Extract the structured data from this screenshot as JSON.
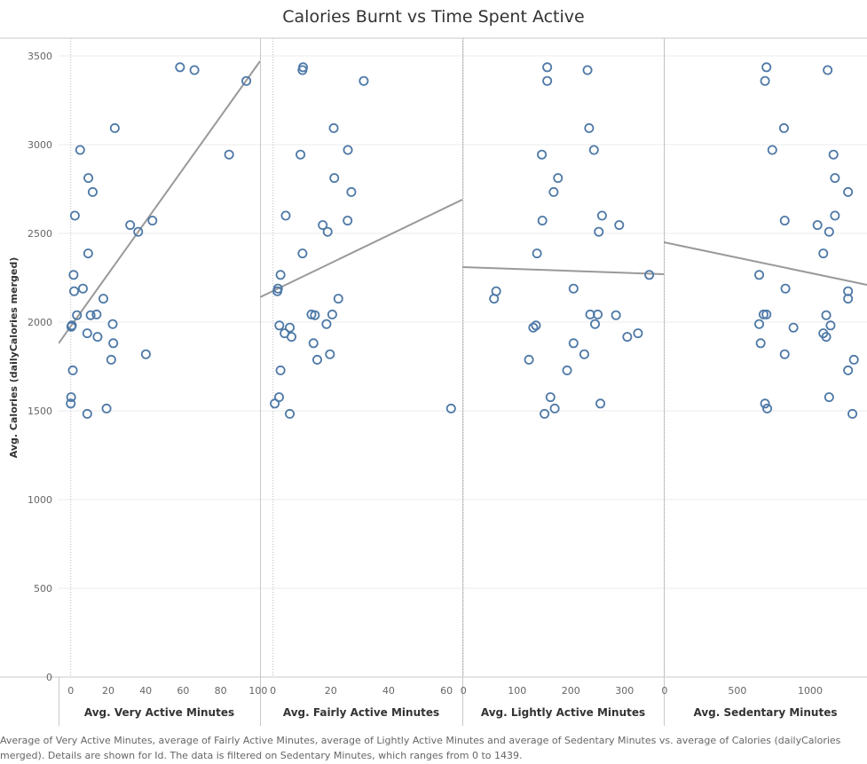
{
  "title": "Calories Burnt vs Time Spent Active",
  "caption": "Average of Very Active Minutes, average of Fairly Active Minutes, average of Lightly Active Minutes and average of Sedentary Minutes vs. average of Calories (dailyCalories merged).  Details are shown for Id. The data is filtered on Sedentary Minutes, which ranges from 0 to 1439.",
  "colors": {
    "point": "#4e79a7",
    "trend": "#999999",
    "grid": "#ebebeb",
    "divider": "#c8c8c8"
  },
  "chart_data": {
    "type": "scatter",
    "ylabel": "Avg. Calories (dailyCalories merged)",
    "ylim": [
      0,
      3600
    ],
    "yticks": [
      0,
      500,
      1000,
      1500,
      2000,
      2500,
      3000,
      3500
    ],
    "grid": "horizontal",
    "panels": [
      {
        "xlabel": "Avg. Very Active Minutes",
        "xlim": [
          -6.5,
          101
        ],
        "xticks": [
          0,
          20,
          40,
          60,
          80,
          100
        ],
        "trend": [
          [
            -6.5,
            1880
          ],
          [
            101,
            3470
          ]
        ],
        "x": [
          93.7,
          58.3,
          66,
          23.5,
          84.5,
          5,
          9.4,
          11.7,
          2.2,
          36,
          31.7,
          43.6,
          9.3,
          1.5,
          6.5,
          1.8,
          17.4,
          3.3,
          10.6,
          13.8,
          22.4,
          0.6,
          0.3,
          8.8,
          14.3,
          22.7,
          40.1,
          21.6,
          1.1,
          0.2,
          0,
          19.1,
          8.8
        ],
        "y": [
          3359,
          3436,
          3420,
          3093,
          2944,
          2970,
          2812,
          2733,
          2600,
          2509,
          2547,
          2572,
          2387,
          2266,
          2189,
          2174,
          2132,
          2039,
          2039,
          2043,
          1989,
          1981,
          1974,
          1937,
          1917,
          1881,
          1819,
          1788,
          1728,
          1577,
          1541,
          1513,
          1483
        ]
      },
      {
        "xlabel": "Avg. Fairly Active Minutes",
        "xlim": [
          -4.5,
          65.5
        ],
        "xticks": [
          0,
          20,
          40,
          60
        ],
        "trend": [
          [
            -4.5,
            2140
          ],
          [
            65.5,
            2690
          ]
        ],
        "x": [
          10.4,
          10.2,
          31.4,
          21,
          9.5,
          25.9,
          21.2,
          27.1,
          4.4,
          17.2,
          18.9,
          25.8,
          10.2,
          2.6,
          1.7,
          1.5,
          22.6,
          13.3,
          20.5,
          14.5,
          2.2,
          5.8,
          4,
          6.4,
          14,
          18.5,
          19.7,
          15.3,
          2.6,
          2.1,
          0.6,
          61.6,
          5.8
        ],
        "y": [
          3436,
          3420,
          3359,
          3093,
          2944,
          2970,
          2812,
          2733,
          2600,
          2547,
          2509,
          2572,
          2387,
          2266,
          2189,
          2174,
          2132,
          2043,
          2043,
          2039,
          1981,
          1969,
          1937,
          1917,
          1881,
          1989,
          1819,
          1788,
          1728,
          1577,
          1541,
          1513,
          1483
        ]
      },
      {
        "xlabel": "Avg. Lightly Active Minutes",
        "xlim": [
          -2,
          373
        ],
        "xticks": [
          0,
          100,
          200,
          300
        ],
        "trend": [
          [
            -2,
            2310
          ],
          [
            373,
            2270
          ]
        ],
        "x": [
          156,
          231,
          156,
          234,
          146,
          243,
          176,
          168,
          258,
          147,
          252,
          290,
          137,
          346,
          205,
          61,
          57,
          236,
          250,
          284,
          245,
          135,
          130,
          205,
          325,
          305,
          225,
          122,
          193,
          162,
          255,
          170,
          151
        ],
        "y": [
          3436,
          3420,
          3359,
          3093,
          2944,
          2970,
          2812,
          2733,
          2600,
          2572,
          2509,
          2547,
          2387,
          2266,
          2189,
          2174,
          2132,
          2043,
          2043,
          2039,
          1989,
          1981,
          1969,
          1881,
          1937,
          1917,
          1819,
          1788,
          1728,
          1577,
          1541,
          1513,
          1483
        ]
      },
      {
        "xlabel": "Avg. Sedentary Minutes",
        "xlim": [
          -5,
          1390
        ],
        "xticks": [
          0,
          500,
          1000
        ],
        "trend": [
          [
            -5,
            2450
          ],
          [
            1390,
            2210
          ]
        ],
        "x": [
          700,
          1120,
          690,
          820,
          740,
          1160,
          1170,
          1260,
          1170,
          825,
          1050,
          1130,
          1090,
          650,
          830,
          1260,
          1260,
          1110,
          680,
          700,
          1140,
          650,
          885,
          1090,
          1110,
          660,
          825,
          1300,
          1260,
          1130,
          690,
          705,
          1290
        ],
        "y": [
          3436,
          3420,
          3359,
          3093,
          2970,
          2944,
          2812,
          2733,
          2600,
          2572,
          2547,
          2509,
          2387,
          2266,
          2189,
          2174,
          2132,
          2039,
          2043,
          2043,
          1981,
          1989,
          1969,
          1937,
          1917,
          1881,
          1819,
          1788,
          1728,
          1577,
          1541,
          1513,
          1483
        ]
      }
    ]
  }
}
